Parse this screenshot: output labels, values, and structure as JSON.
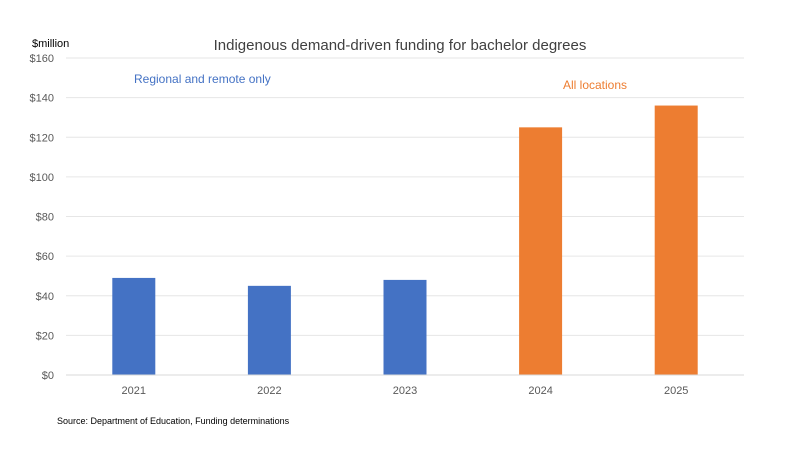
{
  "chart_data": {
    "type": "bar",
    "title": "Indigenous demand-driven funding for bachelor degrees",
    "ylabel": "$million",
    "xlabel": "",
    "categories": [
      "2021",
      "2022",
      "2023",
      "2024",
      "2025"
    ],
    "values": [
      49,
      45,
      48,
      125,
      136
    ],
    "bar_colors": [
      "#4472c4",
      "#4472c4",
      "#4472c4",
      "#ed7d31",
      "#ed7d31"
    ],
    "ylim": [
      0,
      160
    ],
    "yticks": [
      0,
      20,
      40,
      60,
      80,
      100,
      120,
      140,
      160
    ],
    "ytick_labels": [
      "$0",
      "$20",
      "$40",
      "$60",
      "$80",
      "$100",
      "$120",
      "$140",
      "$160"
    ],
    "grid": true,
    "annotations": [
      {
        "text": "Regional and remote only",
        "color": "#4472c4"
      },
      {
        "text": "All locations",
        "color": "#ed7d31"
      }
    ],
    "source": "Source: Department of Education, Funding determinations"
  }
}
